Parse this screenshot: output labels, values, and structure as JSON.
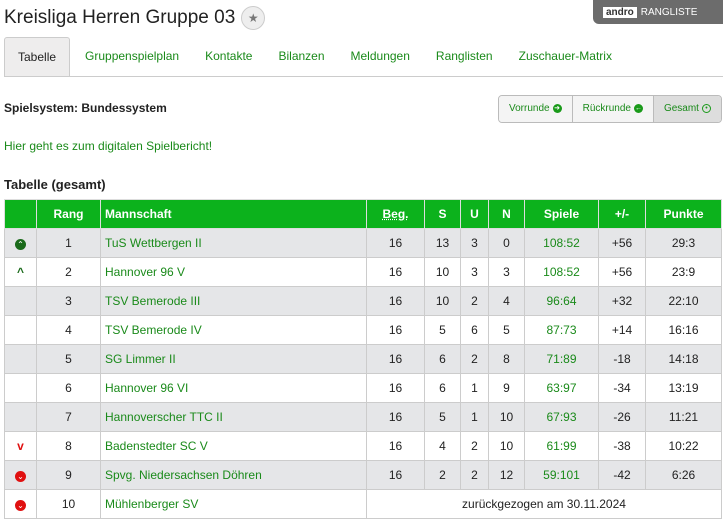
{
  "header": {
    "title": "Kreisliga Herren Gruppe 03",
    "logo_text": "andro",
    "logo_sub": "RANGLISTE"
  },
  "tabs": [
    "Tabelle",
    "Gruppenspielplan",
    "Kontakte",
    "Bilanzen",
    "Meldungen",
    "Ranglisten",
    "Zuschauer-Matrix"
  ],
  "spielsystem": "Spielsystem: Bundessystem",
  "round_buttons": [
    "Vorrunde",
    "Rückrunde",
    "Gesamt"
  ],
  "report_link": "Hier geht es zum digitalen Spielbericht!",
  "table_title": "Tabelle (gesamt)",
  "columns": [
    "",
    "Rang",
    "Mannschaft",
    "Beg.",
    "S",
    "U",
    "N",
    "Spiele",
    "+/-",
    "Punkte"
  ],
  "rows": [
    {
      "icon": "promotion",
      "rang": "1",
      "team": "TuS Wettbergen II",
      "beg": "16",
      "s": "13",
      "u": "3",
      "n": "0",
      "spiele": "108:52",
      "diff": "+56",
      "punkte": "29:3"
    },
    {
      "icon": "relegation-up",
      "rang": "2",
      "team": "Hannover 96 V",
      "beg": "16",
      "s": "10",
      "u": "3",
      "n": "3",
      "spiele": "108:52",
      "diff": "+56",
      "punkte": "23:9"
    },
    {
      "icon": "",
      "rang": "3",
      "team": "TSV Bemerode III",
      "beg": "16",
      "s": "10",
      "u": "2",
      "n": "4",
      "spiele": "96:64",
      "diff": "+32",
      "punkte": "22:10"
    },
    {
      "icon": "",
      "rang": "4",
      "team": "TSV Bemerode IV",
      "beg": "16",
      "s": "5",
      "u": "6",
      "n": "5",
      "spiele": "87:73",
      "diff": "+14",
      "punkte": "16:16"
    },
    {
      "icon": "",
      "rang": "5",
      "team": "SG Limmer II",
      "beg": "16",
      "s": "6",
      "u": "2",
      "n": "8",
      "spiele": "71:89",
      "diff": "-18",
      "punkte": "14:18"
    },
    {
      "icon": "",
      "rang": "6",
      "team": "Hannover 96 VI",
      "beg": "16",
      "s": "6",
      "u": "1",
      "n": "9",
      "spiele": "63:97",
      "diff": "-34",
      "punkte": "13:19"
    },
    {
      "icon": "",
      "rang": "7",
      "team": "Hannoverscher TTC II",
      "beg": "16",
      "s": "5",
      "u": "1",
      "n": "10",
      "spiele": "67:93",
      "diff": "-26",
      "punkte": "11:21"
    },
    {
      "icon": "relegation-down",
      "rang": "8",
      "team": "Badenstedter SC V",
      "beg": "16",
      "s": "4",
      "u": "2",
      "n": "10",
      "spiele": "61:99",
      "diff": "-38",
      "punkte": "10:22"
    },
    {
      "icon": "relegation",
      "rang": "9",
      "team": "Spvg. Niedersachsen Döhren",
      "beg": "16",
      "s": "2",
      "u": "2",
      "n": "12",
      "spiele": "59:101",
      "diff": "-42",
      "punkte": "6:26"
    },
    {
      "icon": "relegation",
      "rang": "10",
      "team": "Mühlenberger SV",
      "withdrawn": "zurückgezogen am 30.11.2024"
    }
  ]
}
